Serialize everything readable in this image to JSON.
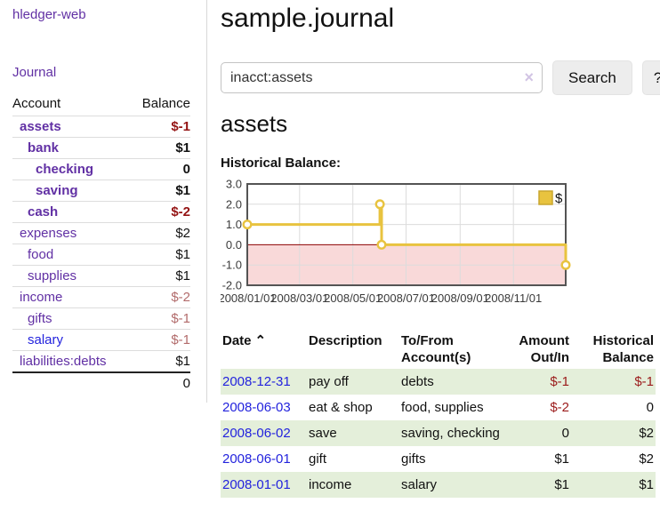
{
  "colors": {
    "link_purple": "#6130a4",
    "link_blue": "#2323dd",
    "negative_dark": "#941414",
    "negative_light": "#b26b6b",
    "row_stripe_green": "#e4efda"
  },
  "sidebar": {
    "brand": "hledger-web",
    "journal_link": "Journal",
    "accounts_table": {
      "headers": {
        "account": "Account",
        "balance": "Balance"
      },
      "rows": [
        {
          "name": "assets",
          "indent": 0,
          "bold": true,
          "link_color": "purple",
          "balance": "$-1",
          "balance_style": "neg-dark"
        },
        {
          "name": "bank",
          "indent": 1,
          "bold": true,
          "link_color": "purple",
          "balance": "$1",
          "balance_style": "pos"
        },
        {
          "name": "checking",
          "indent": 2,
          "bold": true,
          "link_color": "purple",
          "balance": "0",
          "balance_style": "pos"
        },
        {
          "name": "saving",
          "indent": 2,
          "bold": true,
          "link_color": "purple",
          "balance": "$1",
          "balance_style": "pos"
        },
        {
          "name": "cash",
          "indent": 1,
          "bold": true,
          "link_color": "purple",
          "balance": "$-2",
          "balance_style": "neg-dark"
        },
        {
          "name": "expenses",
          "indent": 0,
          "bold": false,
          "link_color": "purple",
          "balance": "$2",
          "balance_style": "pos"
        },
        {
          "name": "food",
          "indent": 1,
          "bold": false,
          "link_color": "purple",
          "balance": "$1",
          "balance_style": "pos"
        },
        {
          "name": "supplies",
          "indent": 1,
          "bold": false,
          "link_color": "purple",
          "balance": "$1",
          "balance_style": "pos"
        },
        {
          "name": "income",
          "indent": 0,
          "bold": false,
          "link_color": "purple",
          "balance": "$-2",
          "balance_style": "neg-light"
        },
        {
          "name": "gifts",
          "indent": 1,
          "bold": false,
          "link_color": "purple",
          "balance": "$-1",
          "balance_style": "neg-light"
        },
        {
          "name": "salary",
          "indent": 1,
          "bold": false,
          "link_color": "blue",
          "balance": "$-1",
          "balance_style": "neg-light"
        },
        {
          "name": "liabilities:debts",
          "indent": 0,
          "bold": false,
          "link_color": "purple",
          "balance": "$1",
          "balance_style": "pos"
        }
      ],
      "total": "0"
    }
  },
  "header": {
    "title": "sample.journal"
  },
  "search": {
    "value": "inacct:assets",
    "clear_icon": "×",
    "button_label": "Search",
    "help_label": "?"
  },
  "account_page": {
    "heading": "assets",
    "chart_label": "Historical Balance:"
  },
  "chart_data": {
    "type": "line",
    "title": "Historical Balance:",
    "series": [
      {
        "name": "$",
        "color": "#e8c33f",
        "step": true,
        "points": [
          [
            "2008/01/01",
            1
          ],
          [
            "2008/06/01",
            2
          ],
          [
            "2008/06/03",
            0
          ],
          [
            "2008/12/31",
            -1
          ]
        ]
      }
    ],
    "x_ticks": [
      "2008/01/01",
      "2008/03/01",
      "2008/05/01",
      "2008/07/01",
      "2008/09/01",
      "2008/11/01"
    ],
    "y_ticks": [
      "3.0",
      "2.0",
      "1.0",
      "0.0",
      "-1.0",
      "-2.0"
    ],
    "ylim": [
      -2,
      3
    ],
    "xlim": [
      "2008/01/01",
      "2008/12/31"
    ],
    "grid": true,
    "legend_position": "top-right",
    "negative_region_color": "#f9d9d9",
    "zero_line_color": "#8b0000"
  },
  "register": {
    "headers": [
      "Date",
      "Description",
      "To/From Account(s)",
      "Amount Out/In",
      "Historical Balance"
    ],
    "sort_icon": "⌃",
    "rows": [
      {
        "date": "2008-12-31",
        "description": "pay off",
        "accounts": "debts",
        "amount": "$-1",
        "amount_style": "neg",
        "balance": "$-1",
        "balance_style": "neg"
      },
      {
        "date": "2008-06-03",
        "description": "eat & shop",
        "accounts": "food, supplies",
        "amount": "$-2",
        "amount_style": "neg",
        "balance": "0",
        "balance_style": "pos"
      },
      {
        "date": "2008-06-02",
        "description": "save",
        "accounts": "saving, checking",
        "amount": "0",
        "amount_style": "pos",
        "balance": "$2",
        "balance_style": "pos"
      },
      {
        "date": "2008-06-01",
        "description": "gift",
        "accounts": "gifts",
        "amount": "$1",
        "amount_style": "pos",
        "balance": "$2",
        "balance_style": "pos"
      },
      {
        "date": "2008-01-01",
        "description": "income",
        "accounts": "salary",
        "amount": "$1",
        "amount_style": "pos",
        "balance": "$1",
        "balance_style": "pos"
      }
    ]
  }
}
